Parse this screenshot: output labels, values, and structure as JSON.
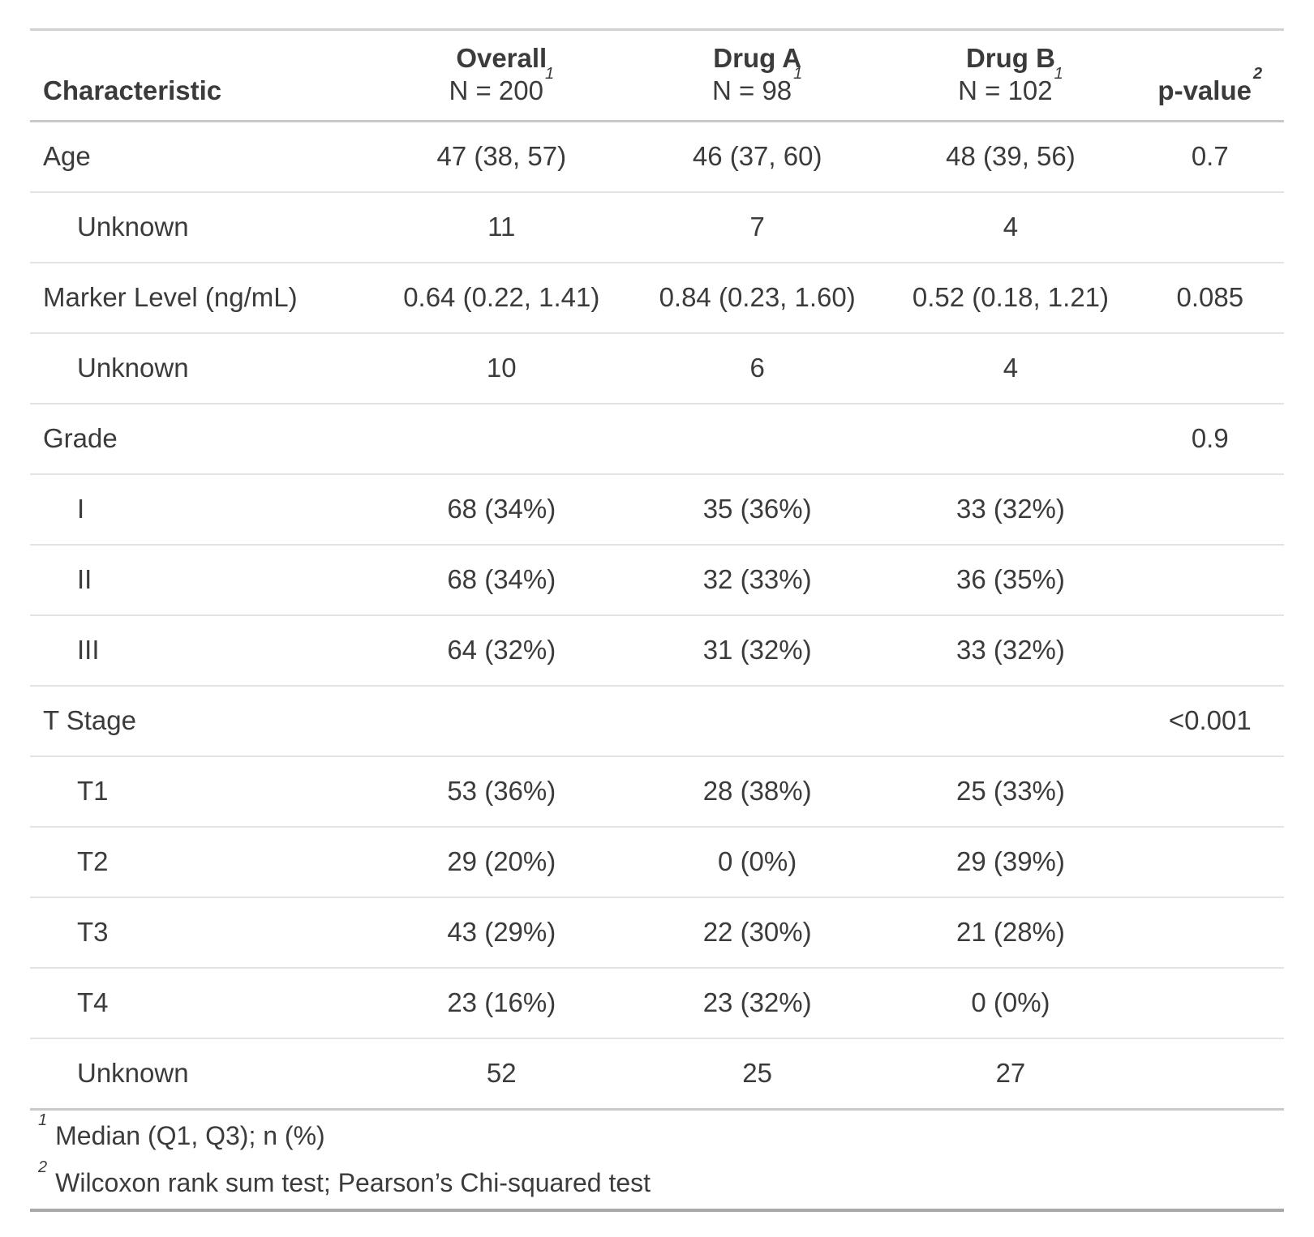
{
  "chart_data": {
    "type": "table",
    "title": "Summary statistics table by treatment group",
    "header": {
      "characteristic": "Characteristic",
      "groups": [
        {
          "key": "overall",
          "label": "Overall",
          "n_label": "N = 200",
          "footnote_marker": "1"
        },
        {
          "key": "drug_a",
          "label": "Drug A",
          "n_label": "N = 98",
          "footnote_marker": "1"
        },
        {
          "key": "drug_b",
          "label": "Drug B",
          "n_label": "N = 102",
          "footnote_marker": "1"
        }
      ],
      "p_value": {
        "label": "p-value",
        "footnote_marker": "2"
      }
    },
    "rows": [
      {
        "label": "Age",
        "indent": false,
        "overall": "47 (38, 57)",
        "drug_a": "46 (37, 60)",
        "drug_b": "48 (39, 56)",
        "p_value": "0.7"
      },
      {
        "label": "Unknown",
        "indent": true,
        "overall": "11",
        "drug_a": "7",
        "drug_b": "4",
        "p_value": ""
      },
      {
        "label": "Marker Level (ng/mL)",
        "indent": false,
        "overall": "0.64 (0.22, 1.41)",
        "drug_a": "0.84 (0.23, 1.60)",
        "drug_b": "0.52 (0.18, 1.21)",
        "p_value": "0.085"
      },
      {
        "label": "Unknown",
        "indent": true,
        "overall": "10",
        "drug_a": "6",
        "drug_b": "4",
        "p_value": ""
      },
      {
        "label": "Grade",
        "indent": false,
        "overall": "",
        "drug_a": "",
        "drug_b": "",
        "p_value": "0.9"
      },
      {
        "label": "I",
        "indent": true,
        "overall": "68 (34%)",
        "drug_a": "35 (36%)",
        "drug_b": "33 (32%)",
        "p_value": ""
      },
      {
        "label": "II",
        "indent": true,
        "overall": "68 (34%)",
        "drug_a": "32 (33%)",
        "drug_b": "36 (35%)",
        "p_value": ""
      },
      {
        "label": "III",
        "indent": true,
        "overall": "64 (32%)",
        "drug_a": "31 (32%)",
        "drug_b": "33 (32%)",
        "p_value": ""
      },
      {
        "label": "T Stage",
        "indent": false,
        "overall": "",
        "drug_a": "",
        "drug_b": "",
        "p_value": "<0.001"
      },
      {
        "label": "T1",
        "indent": true,
        "overall": "53 (36%)",
        "drug_a": "28 (38%)",
        "drug_b": "25 (33%)",
        "p_value": ""
      },
      {
        "label": "T2",
        "indent": true,
        "overall": "29 (20%)",
        "drug_a": "0 (0%)",
        "drug_b": "29 (39%)",
        "p_value": ""
      },
      {
        "label": "T3",
        "indent": true,
        "overall": "43 (29%)",
        "drug_a": "22 (30%)",
        "drug_b": "21 (28%)",
        "p_value": ""
      },
      {
        "label": "T4",
        "indent": true,
        "overall": "23 (16%)",
        "drug_a": "23 (32%)",
        "drug_b": "0 (0%)",
        "p_value": ""
      },
      {
        "label": "Unknown",
        "indent": true,
        "overall": "52",
        "drug_a": "25",
        "drug_b": "27",
        "p_value": ""
      }
    ],
    "footnotes": [
      {
        "marker": "1",
        "text": "Median (Q1, Q3); n (%)"
      },
      {
        "marker": "2",
        "text": "Wilcoxon rank sum test; Pearson’s Chi-squared test"
      }
    ]
  },
  "colors": {
    "text": "#3b3b3b",
    "border_top": "#d1d1d1",
    "border_header": "#c9c9c9",
    "border_row": "#e3e3e3",
    "border_footnote": "#c9c9c9",
    "border_bottom": "#a8a8a8",
    "background": "#ffffff"
  }
}
